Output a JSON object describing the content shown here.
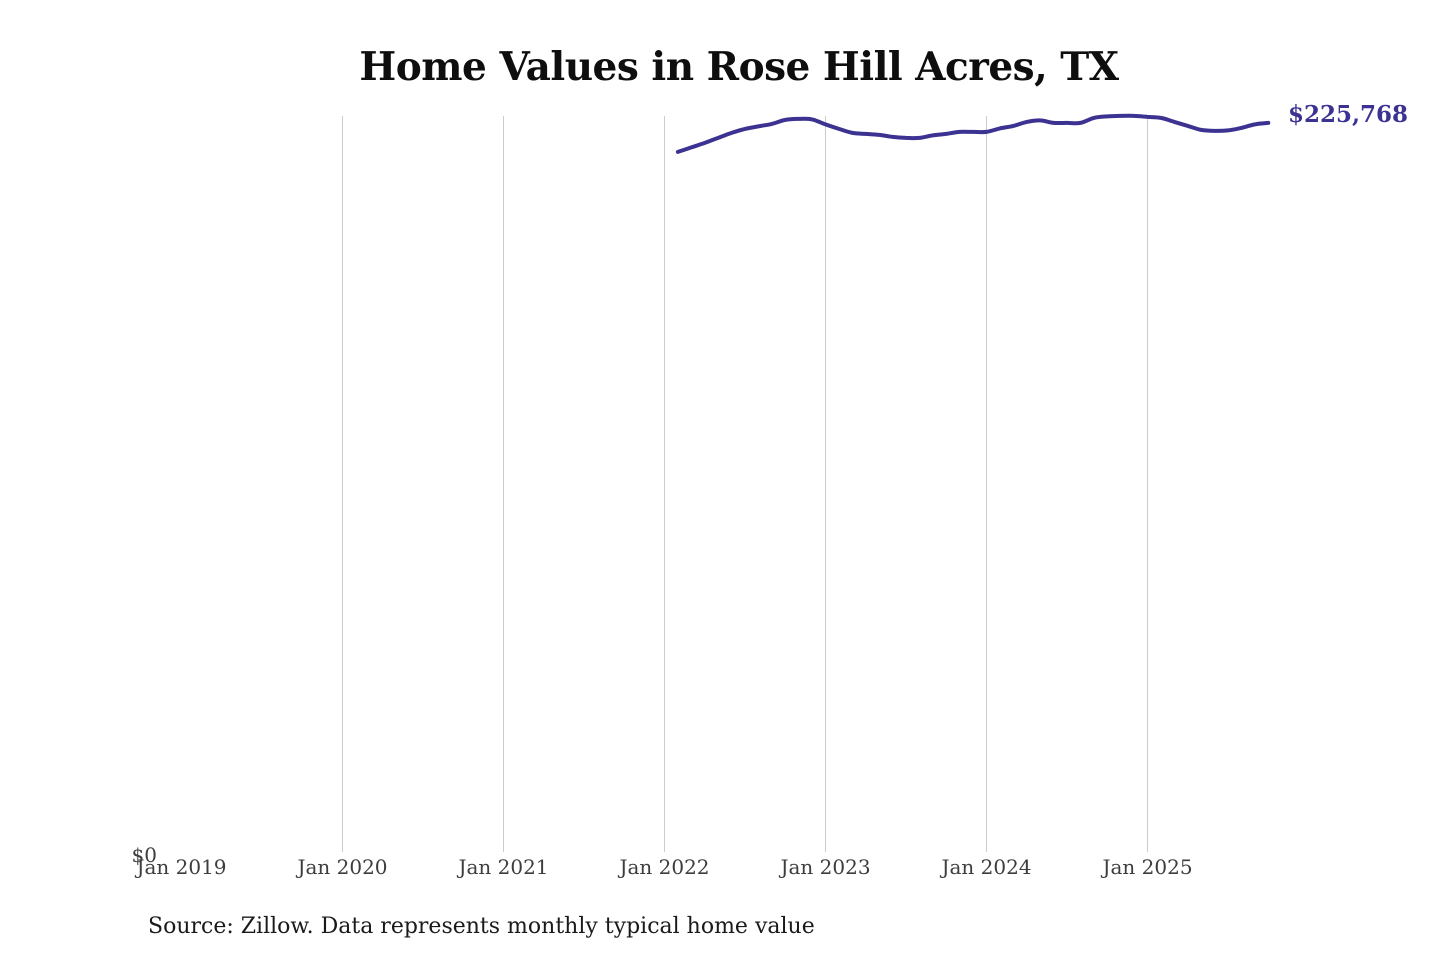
{
  "title": "Home Values in Rose Hill Acres, TX",
  "source_note": "Source: Zillow. Data represents monthly typical home value",
  "colors": {
    "line": "#3b3292",
    "grid": "#cbcbcb",
    "title_text": "#0e0e0e",
    "axis_label": "#3d3d3d",
    "source_text": "#1a1a1a",
    "background": "#ffffff"
  },
  "chart_data": {
    "type": "line",
    "title": "Home Values in Rose Hill Acres, TX",
    "xlabel": "",
    "ylabel": "",
    "grid": "vertical-only",
    "legend": "none",
    "end_label": "$225,768",
    "latest_value": 225768,
    "y_axis": {
      "min": 0,
      "zero_label": "$0"
    },
    "x_axis": {
      "start": "2019-01",
      "ticks": [
        {
          "label": "Jan 2019",
          "gridline": false
        },
        {
          "label": "Jan 2020",
          "gridline": true
        },
        {
          "label": "Jan 2021",
          "gridline": true
        },
        {
          "label": "Jan 2022",
          "gridline": true
        },
        {
          "label": "Jan 2023",
          "gridline": true
        },
        {
          "label": "Jan 2024",
          "gridline": true
        },
        {
          "label": "Jan 2025",
          "gridline": true
        }
      ]
    },
    "series": [
      {
        "name": "Monthly typical home value",
        "x": [
          "2022-02",
          "2022-03",
          "2022-04",
          "2022-05",
          "2022-06",
          "2022-07",
          "2022-08",
          "2022-09",
          "2022-10",
          "2022-11",
          "2022-12",
          "2023-01",
          "2023-02",
          "2023-03",
          "2023-04",
          "2023-05",
          "2023-06",
          "2023-07",
          "2023-08",
          "2023-09",
          "2023-10",
          "2023-11",
          "2023-12",
          "2024-01",
          "2024-02",
          "2024-03",
          "2024-04",
          "2024-05",
          "2024-06",
          "2024-07",
          "2024-08",
          "2024-09",
          "2024-10",
          "2024-11",
          "2024-12",
          "2025-01",
          "2025-02",
          "2025-03",
          "2025-04",
          "2025-05",
          "2025-06",
          "2025-07",
          "2025-08",
          "2025-09",
          "2025-10"
        ],
        "values": [
          216790,
          218180,
          219580,
          221130,
          222670,
          223910,
          224690,
          225460,
          226700,
          227010,
          226860,
          225310,
          223910,
          222670,
          222360,
          222060,
          221440,
          221130,
          221130,
          221900,
          222360,
          222980,
          222980,
          222980,
          224070,
          224840,
          226080,
          226550,
          225770,
          225770,
          225770,
          227320,
          227780,
          227940,
          227940,
          227630,
          227320,
          226080,
          224840,
          223600,
          223290,
          223450,
          224220,
          225310,
          225768
        ]
      }
    ]
  }
}
